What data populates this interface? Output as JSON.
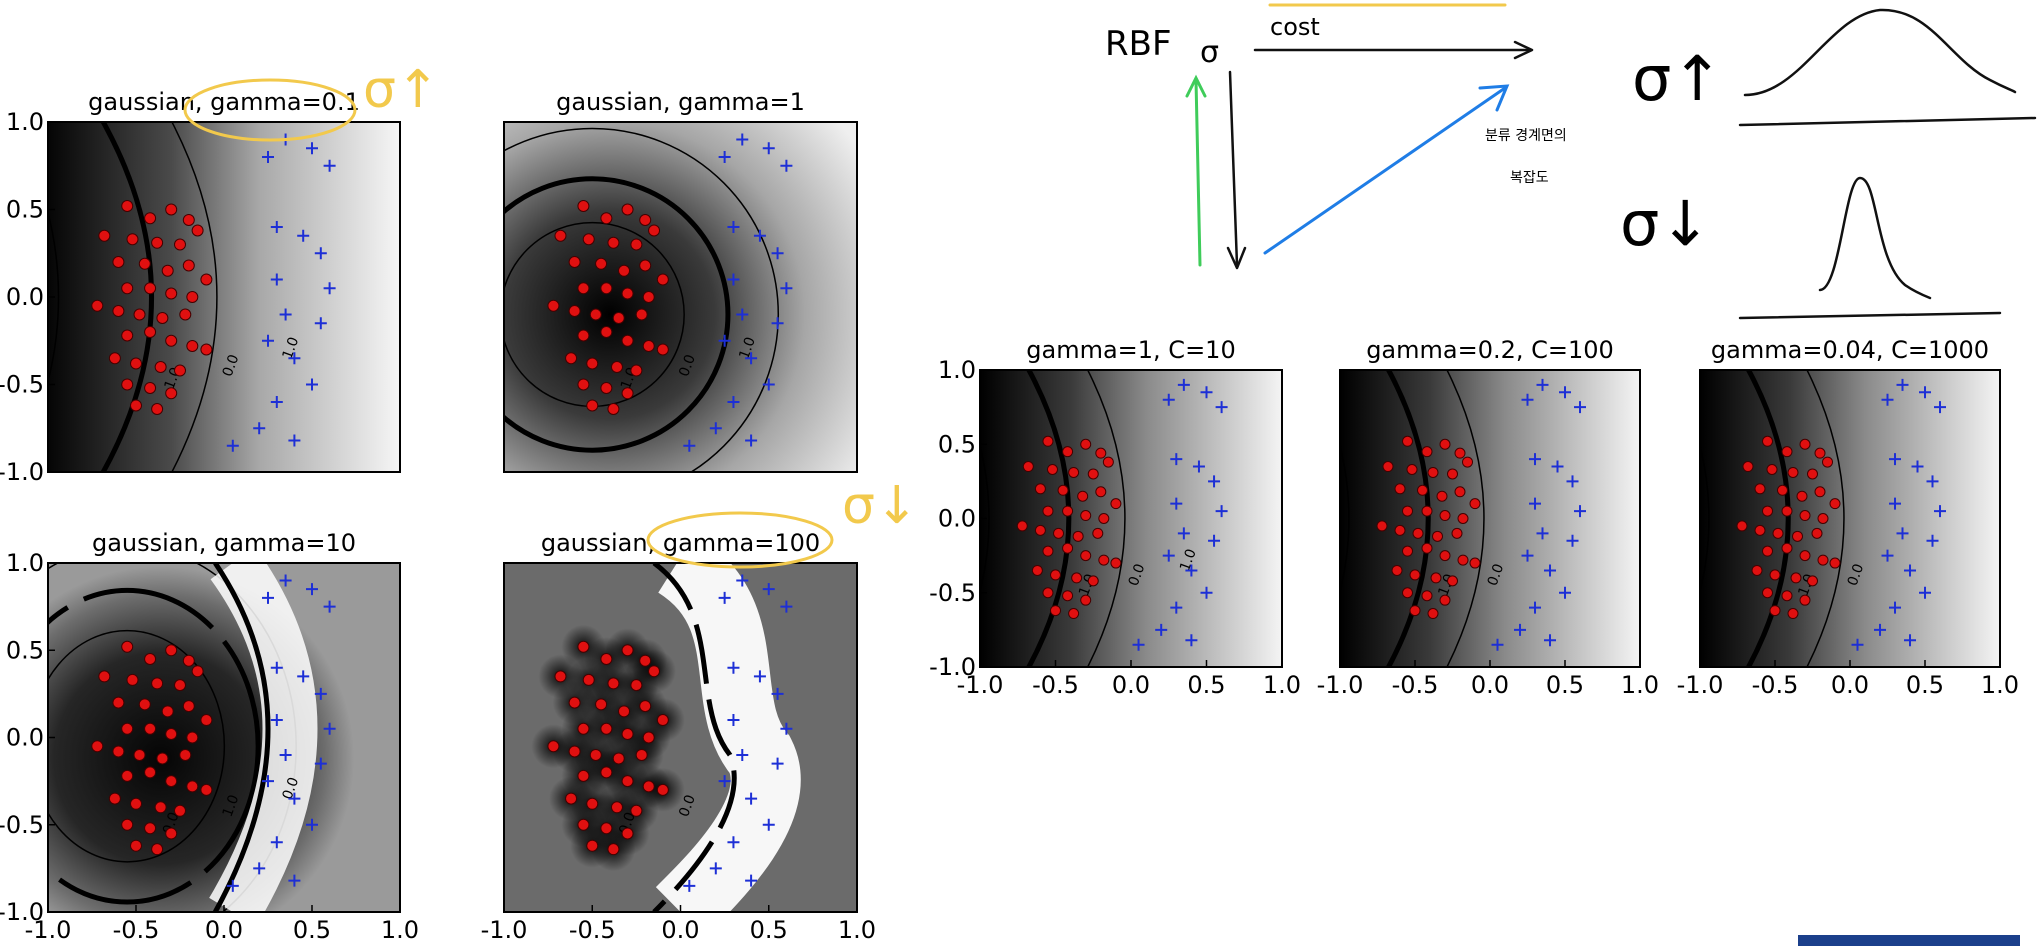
{
  "chart_data": [
    {
      "type": "heatmap",
      "title": "gaussian, gamma=0.1",
      "xlim": [
        -1.0,
        1.0
      ],
      "ylim": [
        -1.0,
        1.0
      ],
      "xticks": [],
      "yticks": [
        "1.0",
        "0.5",
        "0.0",
        "-0.5",
        "-1.0"
      ],
      "contour_labels": [
        "-1.0",
        "0.0",
        "1.0"
      ],
      "boundary_center": [
        -0.95,
        0.0
      ],
      "boundary_radius": 0.95,
      "series": [
        {
          "marker": "red-circle",
          "points": [
            [
              -0.55,
              0.52
            ],
            [
              -0.42,
              0.45
            ],
            [
              -0.3,
              0.5
            ],
            [
              -0.2,
              0.44
            ],
            [
              -0.68,
              0.35
            ],
            [
              -0.52,
              0.33
            ],
            [
              -0.38,
              0.31
            ],
            [
              -0.25,
              0.3
            ],
            [
              -0.15,
              0.38
            ],
            [
              -0.6,
              0.2
            ],
            [
              -0.45,
              0.19
            ],
            [
              -0.32,
              0.15
            ],
            [
              -0.2,
              0.18
            ],
            [
              -0.1,
              0.1
            ],
            [
              -0.55,
              0.05
            ],
            [
              -0.42,
              0.05
            ],
            [
              -0.3,
              0.02
            ],
            [
              -0.18,
              0.0
            ],
            [
              -0.72,
              -0.05
            ],
            [
              -0.6,
              -0.08
            ],
            [
              -0.48,
              -0.1
            ],
            [
              -0.35,
              -0.12
            ],
            [
              -0.22,
              -0.1
            ],
            [
              -0.55,
              -0.22
            ],
            [
              -0.42,
              -0.2
            ],
            [
              -0.3,
              -0.25
            ],
            [
              -0.18,
              -0.28
            ],
            [
              -0.62,
              -0.35
            ],
            [
              -0.5,
              -0.38
            ],
            [
              -0.36,
              -0.4
            ],
            [
              -0.25,
              -0.42
            ],
            [
              -0.1,
              -0.3
            ],
            [
              -0.55,
              -0.5
            ],
            [
              -0.42,
              -0.52
            ],
            [
              -0.3,
              -0.55
            ],
            [
              -0.5,
              -0.62
            ],
            [
              -0.38,
              -0.64
            ]
          ]
        },
        {
          "marker": "blue-plus",
          "points": [
            [
              0.35,
              0.9
            ],
            [
              0.5,
              0.85
            ],
            [
              0.25,
              0.8
            ],
            [
              0.6,
              0.75
            ],
            [
              0.3,
              0.4
            ],
            [
              0.45,
              0.35
            ],
            [
              0.55,
              0.25
            ],
            [
              0.3,
              0.1
            ],
            [
              0.6,
              0.05
            ],
            [
              0.35,
              -0.1
            ],
            [
              0.55,
              -0.15
            ],
            [
              0.25,
              -0.25
            ],
            [
              0.4,
              -0.35
            ],
            [
              0.5,
              -0.5
            ],
            [
              0.3,
              -0.6
            ],
            [
              0.2,
              -0.75
            ],
            [
              0.4,
              -0.82
            ],
            [
              0.05,
              -0.85
            ]
          ]
        }
      ]
    },
    {
      "type": "heatmap",
      "title": "gaussian, gamma=1",
      "xlim": [
        -1.0,
        1.0
      ],
      "ylim": [
        -1.0,
        1.0
      ],
      "xticks": [],
      "yticks": [],
      "contour_labels": [
        "-1.0",
        "0.0",
        "1.0"
      ],
      "boundary_center": [
        -0.5,
        -0.1
      ],
      "boundary_radius": 0.72
    },
    {
      "type": "heatmap",
      "title": "gaussian, gamma=10",
      "xlim": [
        -1.0,
        1.0
      ],
      "ylim": [
        -1.0,
        1.0
      ],
      "xticks": [
        "-1.0",
        "-0.5",
        "0.0",
        "0.5",
        "1.0"
      ],
      "yticks": [
        "1.0",
        "0.5",
        "0.0",
        "-0.5",
        "-1.0"
      ],
      "contour_labels": [
        "0.0",
        "1.0",
        "0.0"
      ]
    },
    {
      "type": "heatmap",
      "title": "gaussian, gamma=100",
      "xlim": [
        -1.0,
        1.0
      ],
      "ylim": [
        -1.0,
        1.0
      ],
      "xticks": [
        "-1.0",
        "-0.5",
        "0.0",
        "0.5",
        "1.0"
      ],
      "yticks": [],
      "contour_labels": [
        "0.0",
        "0.0"
      ]
    },
    {
      "type": "heatmap",
      "title": "gamma=1, C=10",
      "xlim": [
        -1.0,
        1.0
      ],
      "ylim": [
        -1.0,
        1.0
      ],
      "xticks": [
        "-1.0",
        "-0.5",
        "0.0",
        "0.5",
        "1.0"
      ],
      "yticks": [
        "1.0",
        "0.5",
        "0.0",
        "-0.5",
        "-1.0"
      ],
      "contour_labels": [
        "-1.0",
        "0.0",
        "1.0"
      ]
    },
    {
      "type": "heatmap",
      "title": "gamma=0.2, C=100",
      "xlim": [
        -1.0,
        1.0
      ],
      "ylim": [
        -1.0,
        1.0
      ],
      "xticks": [
        "-1.0",
        "-0.5",
        "0.0",
        "0.5",
        "1.0"
      ],
      "yticks": [],
      "contour_labels": [
        "-1.0",
        "0.0"
      ]
    },
    {
      "type": "heatmap",
      "title": "gamma=0.04, C=1000",
      "xlim": [
        -1.0,
        1.0
      ],
      "ylim": [
        -1.0,
        1.0
      ],
      "xticks": [
        "-1.0",
        "-0.5",
        "0.0",
        "0.5",
        "1.0"
      ],
      "yticks": [],
      "contour_labels": [
        "-1.0",
        "0.0"
      ]
    }
  ],
  "annotations": {
    "rbf": "RBF",
    "sigma": "σ",
    "cost": "cost",
    "korean_note_line1": "분류 경계면의",
    "korean_note_line2": "복잡도",
    "sigma_up": "σ↑",
    "sigma_down": "σ↓",
    "sigma_up_small": "σ↑",
    "sigma_down_small": "σ↓"
  },
  "colors": {
    "red_points": "#e01010",
    "blue_points": "#1d2fd6",
    "yellow_ink": "#f2c94c",
    "green_ink": "#3fcc5a",
    "blue_ink": "#1f7de6",
    "dark_ink": "#111111"
  }
}
